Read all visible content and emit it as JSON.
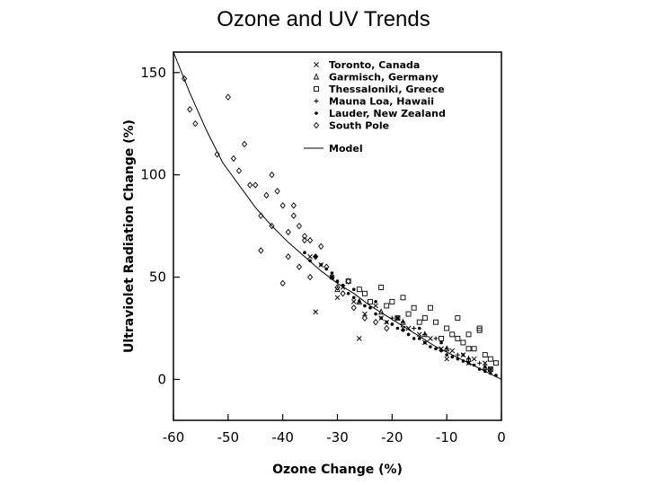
{
  "slide": {
    "title": "Ozone and UV Trends"
  },
  "chart_data": {
    "type": "scatter",
    "title": "",
    "xlabel": "Ozone Change (%)",
    "ylabel": "Ultraviolet Radiation Change (%)",
    "xlim": [
      -60,
      0
    ],
    "ylim": [
      -20,
      160
    ],
    "xticks": [
      -60,
      -50,
      -40,
      -30,
      -20,
      -10,
      0
    ],
    "xtick_labels": [
      "-60",
      "-50",
      "-40",
      "-30",
      "-20",
      "-10",
      "0"
    ],
    "yticks": [
      0,
      50,
      100,
      150
    ],
    "ytick_labels": [
      "0",
      "50",
      "100",
      "150"
    ],
    "grid": false,
    "legend_position": "top-right",
    "series": [
      {
        "name": "Toronto, Canada",
        "marker": "x",
        "x": [
          -35,
          -33,
          -31,
          -29,
          -27,
          -25,
          -23,
          -21,
          -19,
          -17,
          -15,
          -13,
          -11,
          -9,
          -7,
          -5,
          -3,
          -34,
          -30,
          -26,
          -22,
          -18,
          -14,
          -10,
          -6,
          -2
        ],
        "y": [
          60,
          56,
          50,
          45,
          38,
          32,
          36,
          28,
          30,
          25,
          22,
          20,
          15,
          14,
          12,
          10,
          8,
          33,
          40,
          20,
          30,
          25,
          18,
          10,
          8,
          5
        ]
      },
      {
        "name": "Garmisch, Germany",
        "marker": "triangle",
        "x": [
          -30,
          -26,
          -22,
          -18,
          -14,
          -10,
          -6,
          -3
        ],
        "y": [
          44,
          38,
          33,
          28,
          22,
          15,
          10,
          6
        ]
      },
      {
        "name": "Thessaloniki, Greece",
        "marker": "square",
        "x": [
          -28,
          -25,
          -22,
          -20,
          -18,
          -16,
          -14,
          -12,
          -10,
          -9,
          -8,
          -7,
          -6,
          -5,
          -4,
          -3,
          -2,
          -1,
          -24,
          -19,
          -15,
          -11,
          -6,
          -2,
          -13,
          -8,
          -4,
          -26,
          -21,
          -17
        ],
        "y": [
          48,
          42,
          45,
          38,
          40,
          35,
          30,
          28,
          25,
          22,
          20,
          18,
          22,
          15,
          24,
          12,
          10,
          8,
          38,
          30,
          28,
          20,
          15,
          5,
          35,
          30,
          25,
          44,
          36,
          32
        ]
      },
      {
        "name": "Mauna Loa, Hawaii",
        "marker": "plus",
        "x": [
          -20,
          -18,
          -16,
          -14,
          -12,
          -10,
          -8,
          -6,
          -4,
          -2
        ],
        "y": [
          30,
          28,
          25,
          22,
          20,
          15,
          12,
          10,
          8,
          5
        ]
      },
      {
        "name": "Lauder, New Zealand",
        "marker": "dot",
        "x": [
          -36,
          -34,
          -33,
          -32,
          -31,
          -30,
          -29,
          -28,
          -27,
          -26,
          -25,
          -24,
          -23,
          -22,
          -21,
          -20,
          -19,
          -18,
          -17,
          -16,
          -15,
          -14,
          -13,
          -12,
          -11,
          -10,
          -9,
          -8,
          -7,
          -6,
          -5,
          -4,
          -3,
          -2,
          -1,
          -35,
          -31,
          -27,
          -23,
          -19,
          -15,
          -11,
          -7,
          -3
        ],
        "y": [
          62,
          60,
          56,
          54,
          50,
          48,
          46,
          42,
          40,
          38,
          36,
          35,
          32,
          30,
          28,
          27,
          25,
          24,
          22,
          20,
          20,
          18,
          16,
          15,
          14,
          12,
          11,
          10,
          9,
          8,
          7,
          5,
          4,
          3,
          2,
          58,
          52,
          44,
          38,
          30,
          25,
          18,
          12,
          6
        ]
      },
      {
        "name": "South Pole",
        "marker": "diamond",
        "x": [
          -58,
          -57,
          -56,
          -52,
          -50,
          -49,
          -48,
          -47,
          -45,
          -44,
          -43,
          -42,
          -41,
          -40,
          -39,
          -38,
          -37,
          -36,
          -35,
          -34,
          -33,
          -32,
          -31,
          -30,
          -29,
          -28,
          -27,
          -25,
          -23,
          -21,
          -40,
          -44,
          -46,
          -42,
          -38,
          -36,
          -39,
          -37,
          -35
        ],
        "y": [
          147,
          132,
          125,
          110,
          138,
          108,
          102,
          115,
          95,
          80,
          90,
          100,
          92,
          85,
          72,
          80,
          75,
          70,
          68,
          60,
          65,
          55,
          50,
          45,
          42,
          48,
          35,
          30,
          28,
          25,
          47,
          63,
          95,
          75,
          85,
          68,
          60,
          55,
          50
        ]
      }
    ],
    "model": {
      "name": "Model",
      "x": [
        -60,
        -57,
        -54,
        -51,
        -48,
        -45,
        -42,
        -39,
        -36,
        -33,
        -30,
        -27,
        -24,
        -21,
        -18,
        -15,
        -12,
        -9,
        -6,
        -3,
        0
      ],
      "y": [
        160,
        140,
        122,
        106,
        95,
        84,
        75,
        67,
        60,
        53,
        47,
        42,
        36,
        31,
        26,
        21,
        16,
        12,
        8,
        4,
        0
      ]
    }
  }
}
